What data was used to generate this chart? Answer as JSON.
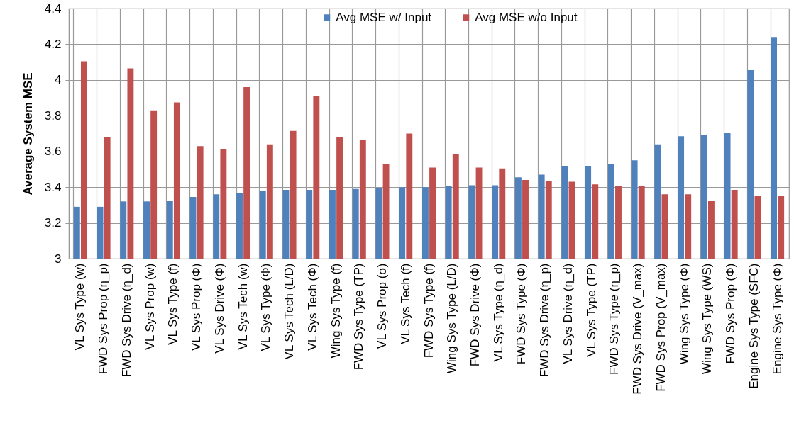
{
  "chart_data": {
    "type": "bar",
    "ylabel": "Average System MSE",
    "categories": [
      "VL Sys Type (w)",
      "FWD Sys Prop (η_p)",
      "FWD Sys Drive (η_d)",
      "VL Sys Prop (w)",
      "VL Sys Type (f)",
      "VL Sys Prop (Φ)",
      "VL Sys Drive (Φ)",
      "VL Sys Tech (w)",
      "VL Sys Type (Φ)",
      "VL Sys Tech (L/D)",
      "VL Sys Tech (Φ)",
      "Wing Sys Type (f)",
      "FWD Sys Type (TP)",
      "VL Sys Prop (σ)",
      "VL Sys Tech (f)",
      "FWD Sys Type (f)",
      "Wing Sys Type (L/D)",
      "FWD Sys Drive (Φ)",
      "VL Sys Type (η_d)",
      "FWD Sys Type (Φ)",
      "FWD Sys Drive (η_p)",
      "VL Sys Drive (η_d)",
      "VL Sys Type (TP)",
      "FWD Sys Type (η_p)",
      "FWD Sys Drive (V_max)",
      "FWD Sys Prop (V_max)",
      "Wing Sys Type (Φ)",
      "Wing Sys Type (WS)",
      "FWD Sys Prop (Φ)",
      "Engine Sys Type (SFC)",
      "Engine Sys Type (Φ)"
    ],
    "series": [
      {
        "name": "Avg MSE w/ Input",
        "color": "#4f81bd",
        "values": [
          3.29,
          3.29,
          3.32,
          3.32,
          3.325,
          3.345,
          3.36,
          3.365,
          3.38,
          3.385,
          3.385,
          3.385,
          3.39,
          3.395,
          3.4,
          3.4,
          3.405,
          3.41,
          3.41,
          3.455,
          3.47,
          3.52,
          3.52,
          3.53,
          3.55,
          3.64,
          3.685,
          3.69,
          3.705,
          4.055,
          4.24
        ]
      },
      {
        "name": "Avg MSE w/o Input",
        "color": "#c0504d",
        "values": [
          4.105,
          3.68,
          4.065,
          3.83,
          3.875,
          3.63,
          3.615,
          3.96,
          3.64,
          3.715,
          3.91,
          3.68,
          3.665,
          3.53,
          3.7,
          3.51,
          3.585,
          3.51,
          3.505,
          3.44,
          3.435,
          3.43,
          3.415,
          3.405,
          3.405,
          3.36,
          3.36,
          3.325,
          3.385,
          3.35,
          3.35
        ]
      }
    ],
    "ylim": [
      3,
      4.4
    ],
    "yticks": [
      3,
      3.2,
      3.4,
      3.6,
      3.8,
      4,
      4.2,
      4.4
    ],
    "grid": true,
    "legend": "top"
  }
}
